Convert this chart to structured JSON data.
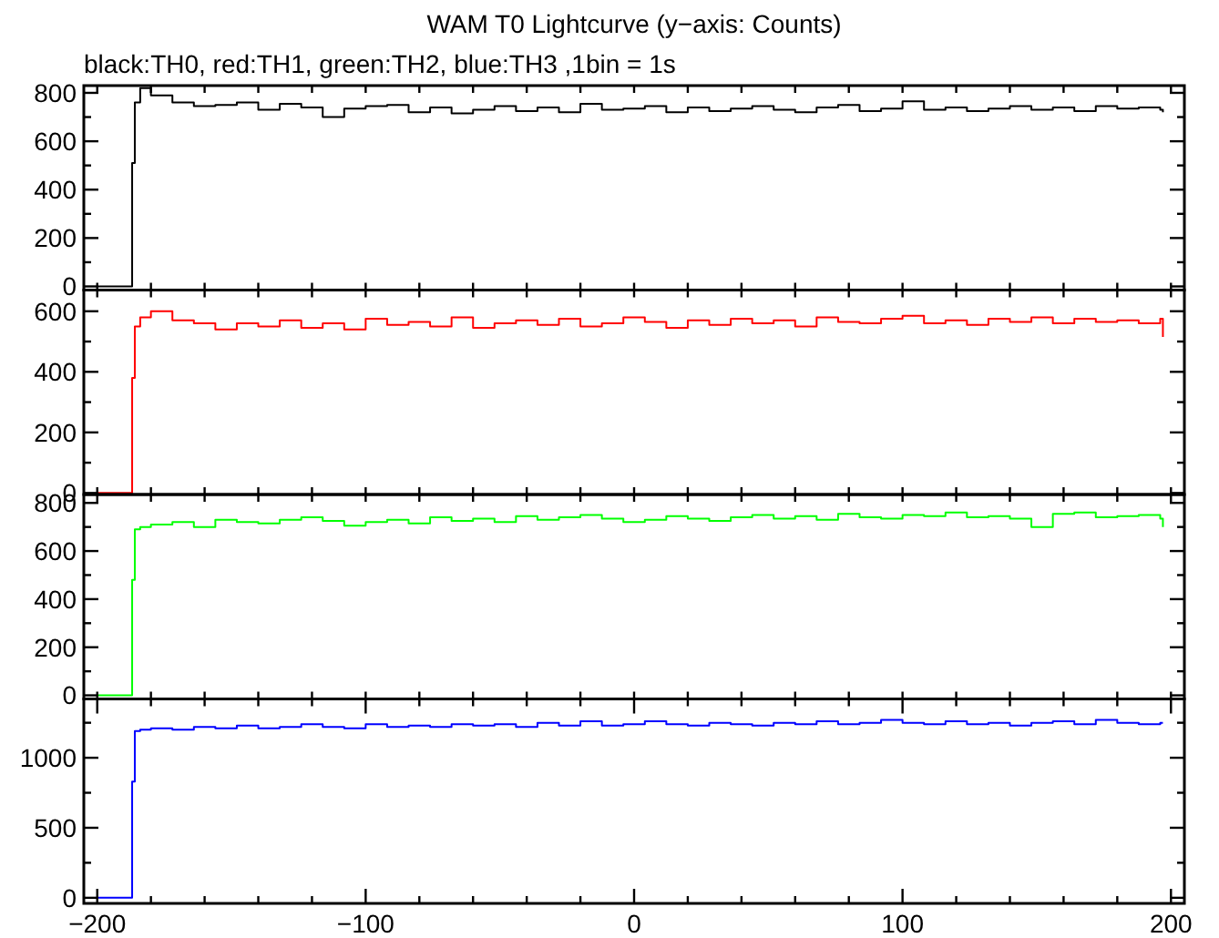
{
  "chart_data": [
    {
      "type": "step",
      "title": "WAM T0 Lightcurve (y−axis: Counts)",
      "subtitle": "black:TH0, red:TH1, green:TH2, blue:TH3 ,1bin = 1s",
      "tick_labels": "y",
      "xlim": [
        -205,
        205
      ],
      "xticks": [
        {
          "value": -200,
          "label": null
        },
        {
          "value": -180,
          "label": null
        },
        {
          "value": -160,
          "label": null
        },
        {
          "value": -140,
          "label": null
        },
        {
          "value": -120,
          "label": null
        },
        {
          "value": -100,
          "label": null
        },
        {
          "value": -80,
          "label": null
        },
        {
          "value": -60,
          "label": null
        },
        {
          "value": -40,
          "label": null
        },
        {
          "value": -20,
          "label": null
        },
        {
          "value": 0,
          "label": null
        },
        {
          "value": 20,
          "label": null
        },
        {
          "value": 40,
          "label": null
        },
        {
          "value": 60,
          "label": null
        },
        {
          "value": 80,
          "label": null
        },
        {
          "value": 100,
          "label": null
        },
        {
          "value": 120,
          "label": null
        },
        {
          "value": 140,
          "label": null
        },
        {
          "value": 160,
          "label": null
        },
        {
          "value": 180,
          "label": null
        },
        {
          "value": 200,
          "label": null
        }
      ],
      "ylim": [
        -15,
        830
      ],
      "yticks": [
        0,
        {
          "value": 100,
          "label": null
        },
        200,
        {
          "value": 300,
          "label": null
        },
        400,
        {
          "value": 500,
          "label": null
        },
        600,
        {
          "value": 700,
          "label": null
        },
        800
      ],
      "x": [
        -200,
        -188,
        -187,
        -186,
        -184,
        -180,
        -172,
        -164,
        -156,
        -148,
        -140,
        -132,
        -124,
        -116,
        -108,
        -100,
        -92,
        -84,
        -76,
        -68,
        -60,
        -52,
        -44,
        -36,
        -28,
        -20,
        -12,
        -4,
        4,
        12,
        20,
        28,
        36,
        44,
        52,
        60,
        68,
        76,
        84,
        92,
        100,
        108,
        116,
        124,
        132,
        140,
        148,
        156,
        164,
        172,
        180,
        188,
        196,
        197
      ],
      "series": [
        {
          "color": "#000000",
          "values": [
            0,
            0,
            510,
            760,
            820,
            790,
            760,
            745,
            750,
            760,
            730,
            755,
            740,
            700,
            735,
            745,
            750,
            720,
            740,
            715,
            730,
            745,
            725,
            740,
            720,
            755,
            730,
            735,
            745,
            720,
            740,
            725,
            735,
            745,
            730,
            720,
            740,
            750,
            725,
            735,
            765,
            730,
            740,
            725,
            735,
            745,
            730,
            740,
            725,
            745,
            735,
            740,
            730,
            720
          ]
        }
      ]
    },
    {
      "type": "step",
      "tick_labels": "y",
      "xlim": [
        -205,
        205
      ],
      "xticks": [
        {
          "value": -200,
          "label": null
        },
        {
          "value": -180,
          "label": null
        },
        {
          "value": -160,
          "label": null
        },
        {
          "value": -140,
          "label": null
        },
        {
          "value": -120,
          "label": null
        },
        {
          "value": -100,
          "label": null
        },
        {
          "value": -80,
          "label": null
        },
        {
          "value": -60,
          "label": null
        },
        {
          "value": -40,
          "label": null
        },
        {
          "value": -20,
          "label": null
        },
        {
          "value": 0,
          "label": null
        },
        {
          "value": 20,
          "label": null
        },
        {
          "value": 40,
          "label": null
        },
        {
          "value": 60,
          "label": null
        },
        {
          "value": 80,
          "label": null
        },
        {
          "value": 100,
          "label": null
        },
        {
          "value": 120,
          "label": null
        },
        {
          "value": 140,
          "label": null
        },
        {
          "value": 160,
          "label": null
        },
        {
          "value": 180,
          "label": null
        },
        {
          "value": 200,
          "label": null
        }
      ],
      "ylim": [
        -5,
        670
      ],
      "yticks": [
        0,
        {
          "value": 100,
          "label": null
        },
        200,
        {
          "value": 300,
          "label": null
        },
        400,
        {
          "value": 500,
          "label": null
        },
        600
      ],
      "x": [
        -200,
        -188,
        -187,
        -186,
        -184,
        -180,
        -172,
        -164,
        -156,
        -148,
        -140,
        -132,
        -124,
        -116,
        -108,
        -100,
        -92,
        -84,
        -76,
        -68,
        -60,
        -52,
        -44,
        -36,
        -28,
        -20,
        -12,
        -4,
        4,
        12,
        20,
        28,
        36,
        44,
        52,
        60,
        68,
        76,
        84,
        92,
        100,
        108,
        116,
        124,
        132,
        140,
        148,
        156,
        164,
        172,
        180,
        188,
        196,
        197
      ],
      "series": [
        {
          "color": "#ff0000",
          "values": [
            0,
            0,
            380,
            550,
            580,
            600,
            570,
            560,
            540,
            560,
            550,
            570,
            545,
            560,
            540,
            575,
            555,
            565,
            550,
            580,
            545,
            560,
            570,
            555,
            575,
            550,
            560,
            580,
            565,
            545,
            570,
            555,
            575,
            560,
            570,
            550,
            580,
            565,
            560,
            575,
            585,
            560,
            570,
            555,
            575,
            565,
            580,
            560,
            575,
            565,
            570,
            560,
            575,
            515
          ]
        }
      ]
    },
    {
      "type": "step",
      "tick_labels": "y",
      "xlim": [
        -205,
        205
      ],
      "xticks": [
        {
          "value": -200,
          "label": null
        },
        {
          "value": -180,
          "label": null
        },
        {
          "value": -160,
          "label": null
        },
        {
          "value": -140,
          "label": null
        },
        {
          "value": -120,
          "label": null
        },
        {
          "value": -100,
          "label": null
        },
        {
          "value": -80,
          "label": null
        },
        {
          "value": -60,
          "label": null
        },
        {
          "value": -40,
          "label": null
        },
        {
          "value": -20,
          "label": null
        },
        {
          "value": 0,
          "label": null
        },
        {
          "value": 20,
          "label": null
        },
        {
          "value": 40,
          "label": null
        },
        {
          "value": 60,
          "label": null
        },
        {
          "value": 80,
          "label": null
        },
        {
          "value": 100,
          "label": null
        },
        {
          "value": 120,
          "label": null
        },
        {
          "value": 140,
          "label": null
        },
        {
          "value": 160,
          "label": null
        },
        {
          "value": 180,
          "label": null
        },
        {
          "value": 200,
          "label": null
        }
      ],
      "ylim": [
        -15,
        835
      ],
      "yticks": [
        0,
        {
          "value": 100,
          "label": null
        },
        200,
        {
          "value": 300,
          "label": null
        },
        400,
        {
          "value": 500,
          "label": null
        },
        600,
        {
          "value": 700,
          "label": null
        },
        800
      ],
      "x": [
        -200,
        -188,
        -187,
        -186,
        -184,
        -180,
        -172,
        -164,
        -156,
        -148,
        -140,
        -132,
        -124,
        -116,
        -108,
        -100,
        -92,
        -84,
        -76,
        -68,
        -60,
        -52,
        -44,
        -36,
        -28,
        -20,
        -12,
        -4,
        4,
        12,
        20,
        28,
        36,
        44,
        52,
        60,
        68,
        76,
        84,
        92,
        100,
        108,
        116,
        124,
        132,
        140,
        148,
        156,
        164,
        172,
        180,
        188,
        196,
        197
      ],
      "series": [
        {
          "color": "#00ff00",
          "values": [
            0,
            0,
            480,
            690,
            700,
            710,
            720,
            700,
            730,
            720,
            715,
            730,
            740,
            725,
            705,
            720,
            730,
            715,
            740,
            725,
            735,
            720,
            745,
            730,
            740,
            750,
            735,
            720,
            730,
            745,
            735,
            725,
            740,
            750,
            735,
            745,
            730,
            755,
            740,
            735,
            750,
            745,
            760,
            740,
            745,
            735,
            700,
            755,
            760,
            740,
            745,
            750,
            735,
            700
          ]
        }
      ]
    },
    {
      "type": "step",
      "xlim": [
        -205,
        205
      ],
      "xticks": [
        {
          "value": -200,
          "label": "−200"
        },
        {
          "value": -180,
          "label": null
        },
        {
          "value": -160,
          "label": null
        },
        {
          "value": -140,
          "label": null
        },
        {
          "value": -120,
          "label": null
        },
        {
          "value": -100,
          "label": "−100"
        },
        {
          "value": -80,
          "label": null
        },
        {
          "value": -60,
          "label": null
        },
        {
          "value": -40,
          "label": null
        },
        {
          "value": -20,
          "label": null
        },
        0,
        {
          "value": 20,
          "label": null
        },
        {
          "value": 40,
          "label": null
        },
        {
          "value": 60,
          "label": null
        },
        {
          "value": 80,
          "label": null
        },
        100,
        {
          "value": 120,
          "label": null
        },
        {
          "value": 140,
          "label": null
        },
        {
          "value": 160,
          "label": null
        },
        {
          "value": 180,
          "label": null
        },
        200
      ],
      "ylim": [
        -40,
        1420
      ],
      "yticks": [
        0,
        {
          "value": 250,
          "label": null
        },
        500,
        {
          "value": 750,
          "label": null
        },
        1000,
        {
          "value": 1250,
          "label": null
        }
      ],
      "x": [
        -200,
        -188,
        -187,
        -186,
        -184,
        -180,
        -172,
        -164,
        -156,
        -148,
        -140,
        -132,
        -124,
        -116,
        -108,
        -100,
        -92,
        -84,
        -76,
        -68,
        -60,
        -52,
        -44,
        -36,
        -28,
        -20,
        -12,
        -4,
        4,
        12,
        20,
        28,
        36,
        44,
        52,
        60,
        68,
        76,
        84,
        92,
        100,
        108,
        116,
        124,
        132,
        140,
        148,
        156,
        164,
        172,
        180,
        188,
        196,
        197
      ],
      "series": [
        {
          "color": "#0000ff",
          "values": [
            0,
            0,
            830,
            1190,
            1200,
            1210,
            1200,
            1220,
            1210,
            1230,
            1210,
            1220,
            1240,
            1220,
            1210,
            1240,
            1220,
            1230,
            1220,
            1240,
            1230,
            1240,
            1220,
            1250,
            1230,
            1260,
            1230,
            1240,
            1260,
            1240,
            1230,
            1250,
            1240,
            1230,
            1250,
            1240,
            1260,
            1240,
            1250,
            1270,
            1250,
            1240,
            1260,
            1240,
            1250,
            1230,
            1250,
            1260,
            1240,
            1270,
            1250,
            1240,
            1250,
            1250
          ]
        }
      ]
    }
  ]
}
